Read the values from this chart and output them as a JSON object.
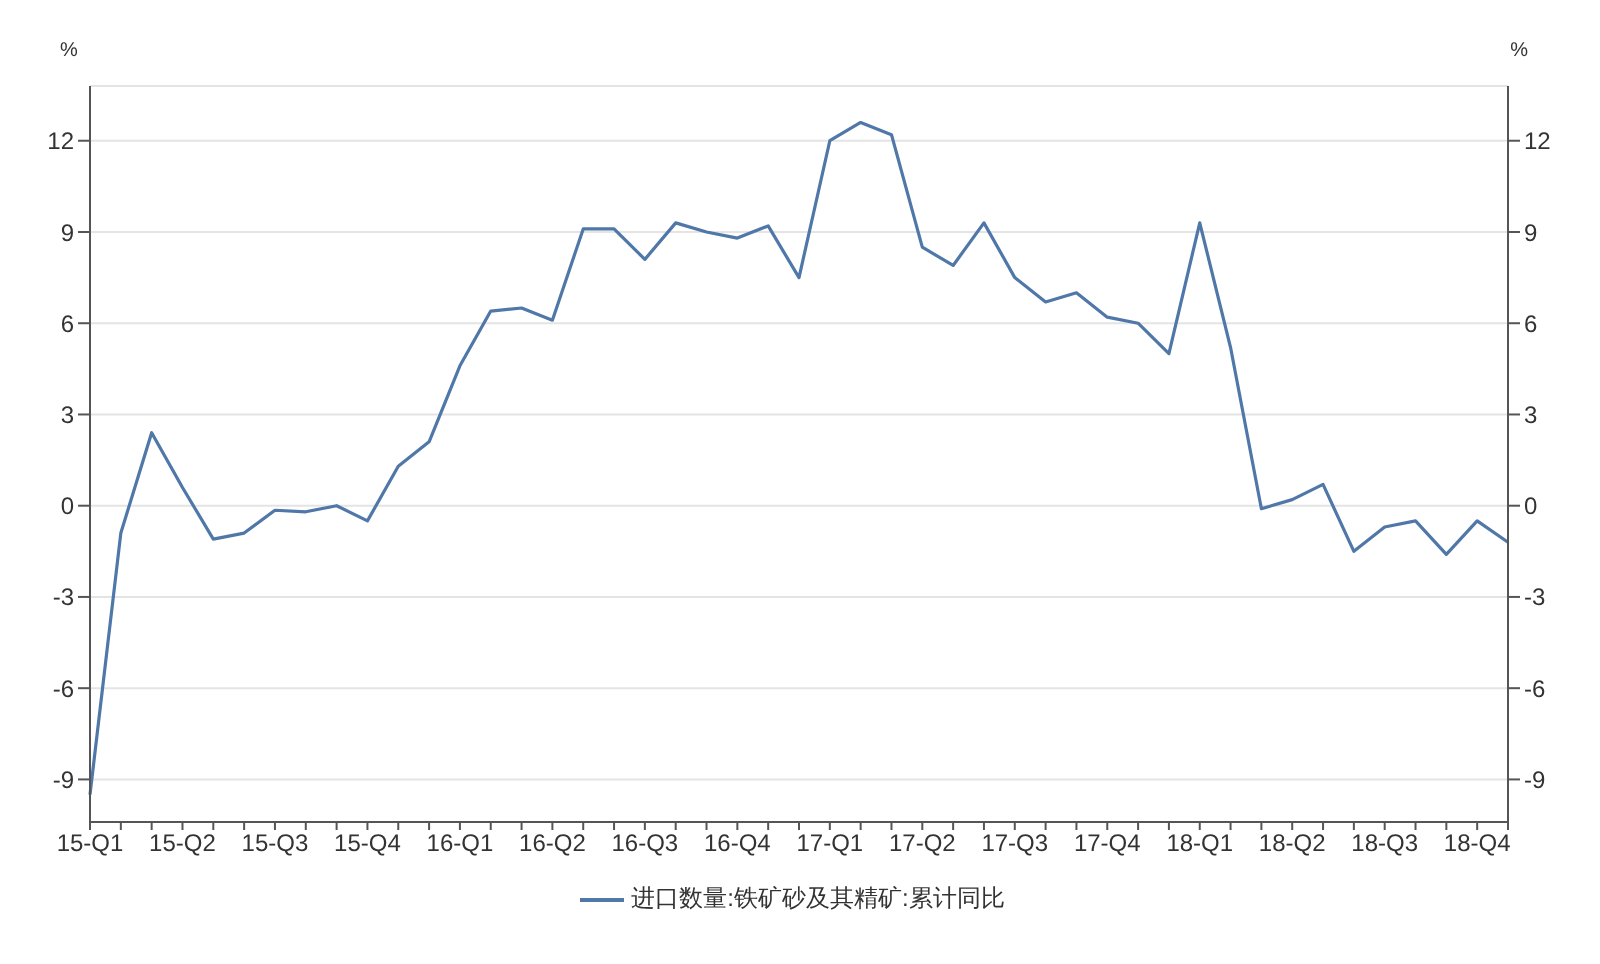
{
  "chart_data": {
    "type": "line",
    "categories": [
      "15-Q1",
      null,
      null,
      "15-Q2",
      null,
      null,
      "15-Q3",
      null,
      null,
      "15-Q4",
      null,
      null,
      "16-Q1",
      null,
      null,
      "16-Q2",
      null,
      null,
      "16-Q3",
      null,
      null,
      "16-Q4",
      null,
      null,
      "17-Q1",
      null,
      null,
      "17-Q2",
      null,
      null,
      "17-Q3",
      null,
      null,
      "17-Q4",
      null,
      null,
      "18-Q1",
      null,
      null,
      "18-Q2",
      null,
      null,
      "18-Q3",
      null,
      null,
      "18-Q4",
      null
    ],
    "series": [
      {
        "name": "进口数量:铁矿砂及其精矿:累计同比",
        "color": "#4f77a8",
        "values": [
          -9.5,
          -0.9,
          2.4,
          0.6,
          -1.1,
          -0.9,
          -0.15,
          -0.2,
          0.0,
          -0.5,
          1.3,
          2.1,
          4.6,
          6.4,
          6.5,
          6.1,
          9.1,
          9.1,
          8.1,
          9.3,
          9.0,
          8.8,
          9.2,
          7.5,
          12.0,
          12.6,
          12.2,
          8.5,
          7.9,
          9.3,
          7.5,
          6.7,
          7.0,
          6.2,
          6.0,
          5.0,
          9.3,
          5.2,
          -0.1,
          0.2,
          0.7,
          -1.5,
          -0.7,
          -0.5,
          -1.6,
          -0.5,
          -1.2
        ]
      }
    ],
    "ylabel": "%",
    "y2label": "%",
    "ylim": [
      -10.4,
      13.8
    ],
    "yticks": [
      -9,
      -6,
      -3,
      0,
      3,
      6,
      9,
      12
    ],
    "y2lim": [
      -10.4,
      13.8
    ],
    "y2ticks": [
      -9,
      -6,
      -3,
      0,
      3,
      6,
      9,
      12
    ],
    "grid": "y",
    "legend": "bottom",
    "marker": "none",
    "line_style": "solid"
  }
}
